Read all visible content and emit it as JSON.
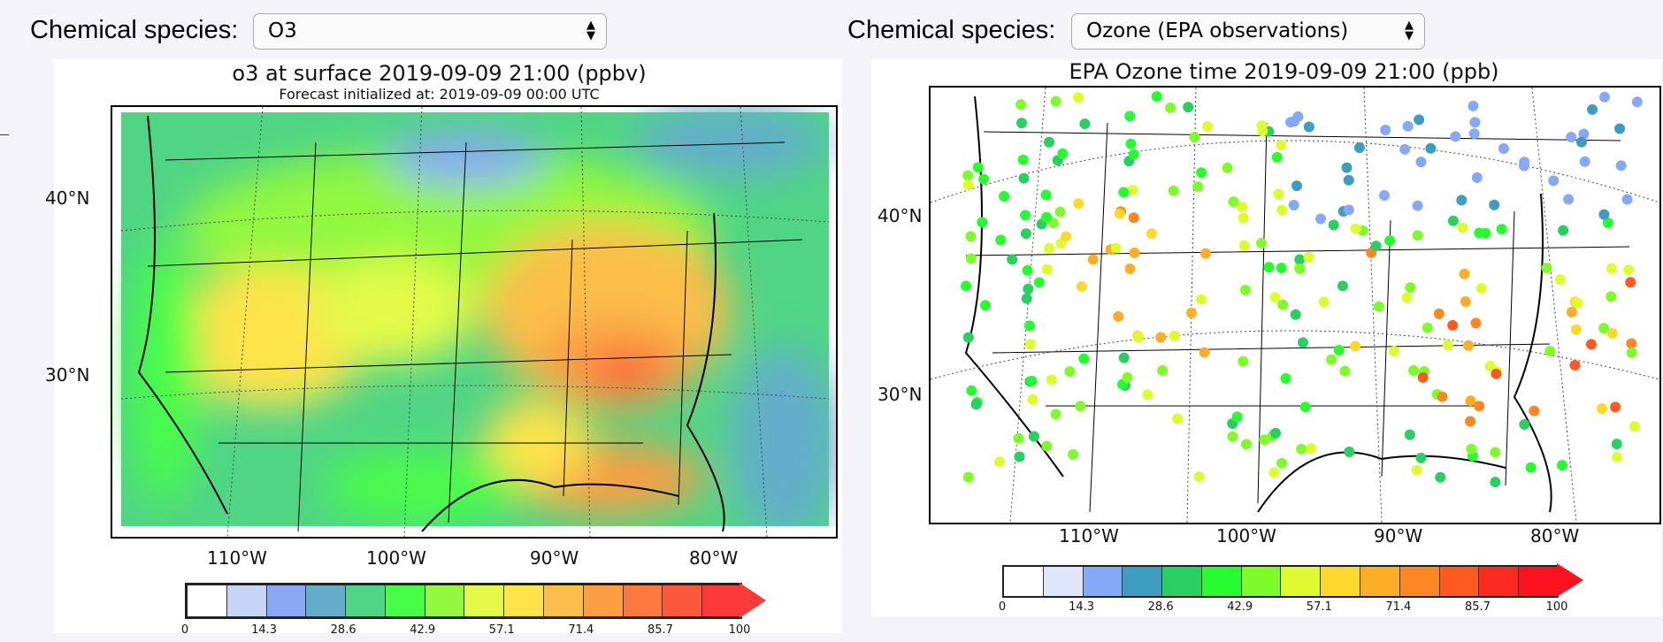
{
  "left": {
    "species_label": "Chemical species:",
    "species_value": "O3",
    "title": "o3 at surface 2019-09-09 21:00 (ppbv)",
    "subtitle": "Forecast initialized at: 2019-09-09 00:00 UTC",
    "lat_labels": [
      "40°N",
      "30°N"
    ],
    "lon_labels": [
      "110°W",
      "100°W",
      "90°W",
      "80°W"
    ],
    "colorbar": {
      "ticks": [
        "0",
        "14.3",
        "28.6",
        "42.9",
        "57.1",
        "71.4",
        "85.7",
        "100"
      ],
      "colors": [
        "#ffffff",
        "#c6d4f8",
        "#8ba8f5",
        "#64aecb",
        "#50d585",
        "#48fd48",
        "#93f83f",
        "#e3fa4a",
        "#fee34b",
        "#fcbe4a",
        "#fb9e44",
        "#fc7a40",
        "#fc583b",
        "#fc3a3a"
      ]
    }
  },
  "right": {
    "species_label": "Chemical species:",
    "species_value": "Ozone (EPA observations)",
    "title": "EPA Ozone time 2019-09-09 21:00 (ppb)",
    "lat_labels": [
      "40°N",
      "30°N"
    ],
    "lon_labels": [
      "110°W",
      "100°W",
      "90°W",
      "80°W"
    ],
    "colorbar": {
      "ticks": [
        "0",
        "14.3",
        "28.6",
        "42.9",
        "57.1",
        "71.4",
        "85.7",
        "100"
      ],
      "colors": [
        "#ffffff",
        "#dfe6fb",
        "#86a8f7",
        "#3f9cc1",
        "#29cf63",
        "#27fb31",
        "#7ffb2b",
        "#ddfb2f",
        "#fcd92a",
        "#fcae29",
        "#fc8724",
        "#fc5a21",
        "#fc2b20",
        "#fd1220"
      ]
    }
  }
}
